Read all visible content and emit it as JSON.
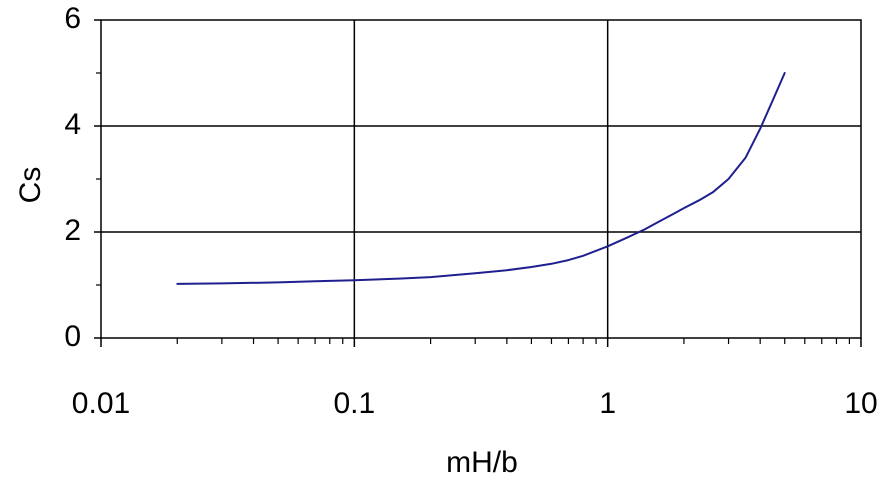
{
  "chart_data": {
    "type": "line",
    "xlabel": "mH/b",
    "ylabel": "Cs",
    "x_scale": "log",
    "xlim": [
      0.01,
      10
    ],
    "ylim": [
      0,
      6
    ],
    "x_ticks": [
      "0.01",
      "0.1",
      "1",
      "10"
    ],
    "y_ticks": [
      "0",
      "2",
      "4",
      "6"
    ],
    "grid": true,
    "colors": {
      "series": "#1f1f8f",
      "grid": "#000000",
      "axis": "#000000"
    },
    "series": [
      {
        "x": [
          0.02,
          0.03,
          0.05,
          0.07,
          0.1,
          0.15,
          0.2,
          0.3,
          0.4,
          0.5,
          0.6,
          0.7,
          0.8,
          1.0,
          1.2,
          1.4,
          1.6,
          1.8,
          2.0,
          2.3,
          2.6,
          3.0,
          3.5,
          4.0,
          4.5,
          5.0
        ],
        "y": [
          1.02,
          1.03,
          1.05,
          1.07,
          1.09,
          1.12,
          1.15,
          1.22,
          1.28,
          1.34,
          1.4,
          1.47,
          1.55,
          1.73,
          1.9,
          2.05,
          2.2,
          2.33,
          2.45,
          2.6,
          2.75,
          3.0,
          3.4,
          3.95,
          4.5,
          5.0
        ]
      }
    ]
  }
}
